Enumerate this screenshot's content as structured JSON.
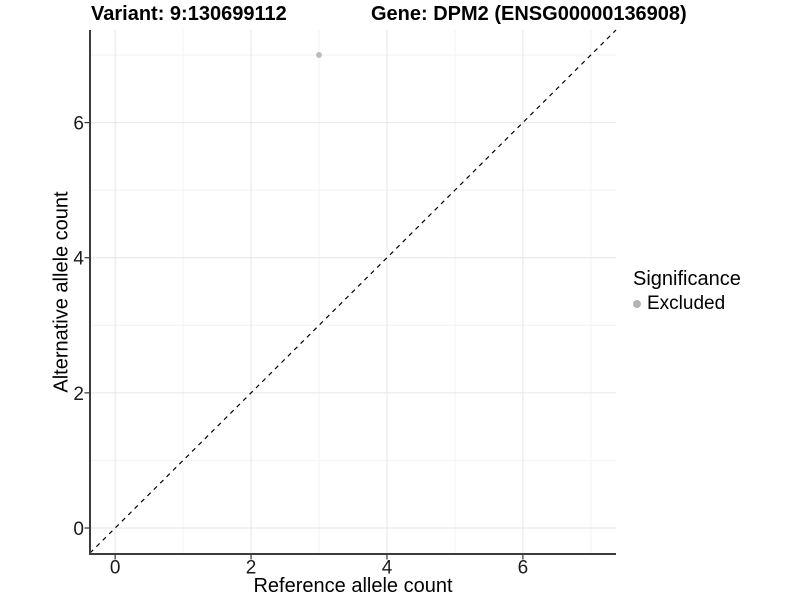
{
  "title": {
    "variant": "Variant: 9:130699112",
    "gene": "Gene: DPM2 (ENSG00000136908)"
  },
  "chart_data": {
    "type": "scatter",
    "xlabel": "Reference allele count",
    "ylabel": "Alternative allele count",
    "xlim": [
      -0.37,
      7.37
    ],
    "ylim": [
      -0.37,
      7.37
    ],
    "x_ticks": [
      0,
      2,
      4,
      6
    ],
    "y_ticks": [
      0,
      2,
      4,
      6
    ],
    "x_minor_ticks": [
      1,
      3,
      5,
      7
    ],
    "y_minor_ticks": [
      1,
      3,
      5,
      7
    ],
    "grid": true,
    "points": [
      {
        "x": 3,
        "y": 7,
        "series": "Excluded"
      }
    ],
    "reference_line": {
      "type": "identity",
      "slope": 1,
      "intercept": 0,
      "style": "dashed",
      "color": "#000000"
    },
    "legend": {
      "title": "Significance",
      "position": "right",
      "items": [
        {
          "label": "Excluded",
          "color": "#b4b4b4"
        }
      ]
    },
    "colors": {
      "point": "#bcbcbc",
      "grid_major": "#e6e6e6",
      "grid_minor": "#f2f2f2",
      "axis": "#3c3c3c",
      "tick": "#333333",
      "panel_bg": "#ffffff"
    }
  }
}
